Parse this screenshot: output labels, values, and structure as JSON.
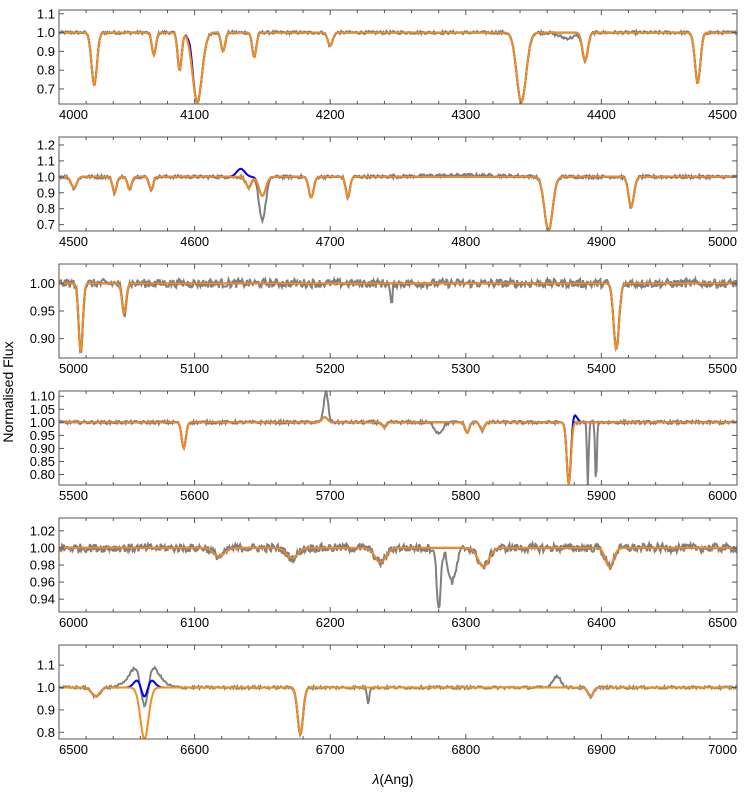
{
  "figure": {
    "ylabel": "Normalised Flux",
    "xlabel_symbol": "λ",
    "xlabel_unit": "(Ang)"
  },
  "legend": [],
  "colors": {
    "observed": "#808080",
    "model_blue": "#0000ee",
    "model_orange": "#f28e1c",
    "frame": "#555555"
  },
  "chart_data": [
    {
      "type": "line",
      "xlim": [
        4000,
        4500
      ],
      "ylim": [
        0.62,
        1.12
      ],
      "x_ticks": [
        "4000",
        "4100",
        "4200",
        "4300",
        "4400",
        "4500"
      ],
      "y_ticks": [
        "0.7",
        "0.8",
        "0.9",
        "1.0",
        "1.1"
      ],
      "features": {
        "lines": [
          [
            4026,
            0.72,
            2.0
          ],
          [
            4070,
            0.88,
            1.5
          ],
          [
            4089,
            0.8,
            1.5
          ],
          [
            4102,
            0.63,
            3.5
          ],
          [
            4121,
            0.9,
            1.5
          ],
          [
            4144,
            0.87,
            1.5
          ],
          [
            4200,
            0.93,
            1.8
          ],
          [
            4341,
            0.63,
            3.5
          ],
          [
            4388,
            0.85,
            2.0
          ],
          [
            4471,
            0.73,
            2.0
          ]
        ],
        "noise": 0.008,
        "blue_diff": [
          [
            4097,
            1.04,
            1.5
          ]
        ],
        "gray_diff": [
          [
            4375,
            0.97,
            6.0
          ]
        ]
      }
    },
    {
      "type": "line",
      "xlim": [
        4500,
        5000
      ],
      "ylim": [
        0.66,
        1.25
      ],
      "x_ticks": [
        "4500",
        "4600",
        "4700",
        "4800",
        "4900",
        "5000"
      ],
      "y_ticks": [
        "0.7",
        "0.8",
        "0.9",
        "1.0",
        "1.1",
        "1.2"
      ],
      "features": {
        "lines": [
          [
            4511,
            0.93,
            2.0
          ],
          [
            4541,
            0.9,
            1.5
          ],
          [
            4552,
            0.92,
            1.5
          ],
          [
            4568,
            0.92,
            1.5
          ],
          [
            4640,
            0.93,
            2.0
          ],
          [
            4650,
            0.88,
            2.5
          ],
          [
            4686,
            0.87,
            1.8
          ],
          [
            4713,
            0.87,
            1.5
          ],
          [
            4861,
            0.66,
            3.0
          ],
          [
            4922,
            0.81,
            2.0
          ]
        ],
        "noise": 0.01,
        "blue_diff": [
          [
            4634,
            1.05,
            3.0
          ],
          [
            4640,
            1.07,
            2.0
          ]
        ],
        "gray_diff": [
          [
            4650,
            0.85,
            2.5
          ],
          [
            4800,
            1.01,
            30.0
          ]
        ]
      }
    },
    {
      "type": "line",
      "xlim": [
        5000,
        5500
      ],
      "ylim": [
        0.865,
        1.035
      ],
      "x_ticks": [
        "5000",
        "5100",
        "5200",
        "5300",
        "5400",
        "5500"
      ],
      "y_ticks": [
        "0.90",
        "0.95",
        "1.00"
      ],
      "features": {
        "lines": [
          [
            5016,
            0.875,
            1.5
          ],
          [
            5048,
            0.945,
            1.5
          ],
          [
            5411,
            0.88,
            2.0
          ]
        ],
        "noise": 0.008,
        "blue_diff": [],
        "gray_diff": [
          [
            5245,
            0.96,
            0.8
          ]
        ]
      }
    },
    {
      "type": "line",
      "xlim": [
        5500,
        6000
      ],
      "ylim": [
        0.76,
        1.12
      ],
      "x_ticks": [
        "5500",
        "5600",
        "5700",
        "5800",
        "5900",
        "6000"
      ],
      "y_ticks": [
        "0.80",
        "0.85",
        "0.90",
        "0.95",
        "1.00",
        "1.05",
        "1.10"
      ],
      "features": {
        "lines": [
          [
            5592,
            0.9,
            1.5
          ],
          [
            5696,
            1.02,
            2.0
          ],
          [
            5740,
            0.98,
            1.5
          ],
          [
            5801,
            0.96,
            1.5
          ],
          [
            5812,
            0.97,
            1.5
          ],
          [
            5876,
            0.76,
            1.5
          ]
        ],
        "noise": 0.006,
        "blue_diff": [
          [
            5880,
            1.03,
            2.0
          ]
        ],
        "gray_diff": [
          [
            5697,
            1.1,
            1.5
          ],
          [
            5890,
            0.76,
            0.6
          ],
          [
            5896,
            0.76,
            0.6
          ],
          [
            5780,
            0.96,
            3.0
          ]
        ]
      }
    },
    {
      "type": "line",
      "xlim": [
        6000,
        6500
      ],
      "ylim": [
        0.925,
        1.035
      ],
      "x_ticks": [
        "6000",
        "6100",
        "6200",
        "6300",
        "6400",
        "6500"
      ],
      "y_ticks": [
        "0.94",
        "0.96",
        "0.98",
        "1.00",
        "1.02"
      ],
      "features": {
        "lines": [
          [
            6118,
            0.99,
            4.0
          ],
          [
            6172,
            0.988,
            4.0
          ],
          [
            6237,
            0.983,
            4.0
          ],
          [
            6313,
            0.978,
            4.0
          ],
          [
            6406,
            0.978,
            3.0
          ]
        ],
        "noise": 0.005,
        "blue_diff": [],
        "gray_diff": [
          [
            6280,
            0.93,
            1.5
          ],
          [
            6290,
            0.96,
            3.0
          ]
        ]
      }
    },
    {
      "type": "line",
      "xlim": [
        6500,
        7000
      ],
      "ylim": [
        0.77,
        1.19
      ],
      "x_ticks": [
        "6500",
        "6600",
        "6700",
        "6800",
        "6900",
        "7000"
      ],
      "y_ticks": [
        "0.8",
        "0.9",
        "1.0",
        "1.1"
      ],
      "features": {
        "lines": [
          [
            6527,
            0.96,
            3.0
          ],
          [
            6563,
            0.77,
            3.0
          ],
          [
            6678,
            0.79,
            2.0
          ],
          [
            6892,
            0.96,
            2.0
          ]
        ],
        "noise": 0.006,
        "blue_diff": [
          [
            6563,
            1.19,
            4.0
          ]
        ],
        "gray_diff": [
          [
            6563,
            1.15,
            8.0
          ],
          [
            6867,
            1.05,
            3.0
          ],
          [
            6728,
            0.93,
            0.8
          ]
        ]
      }
    }
  ]
}
